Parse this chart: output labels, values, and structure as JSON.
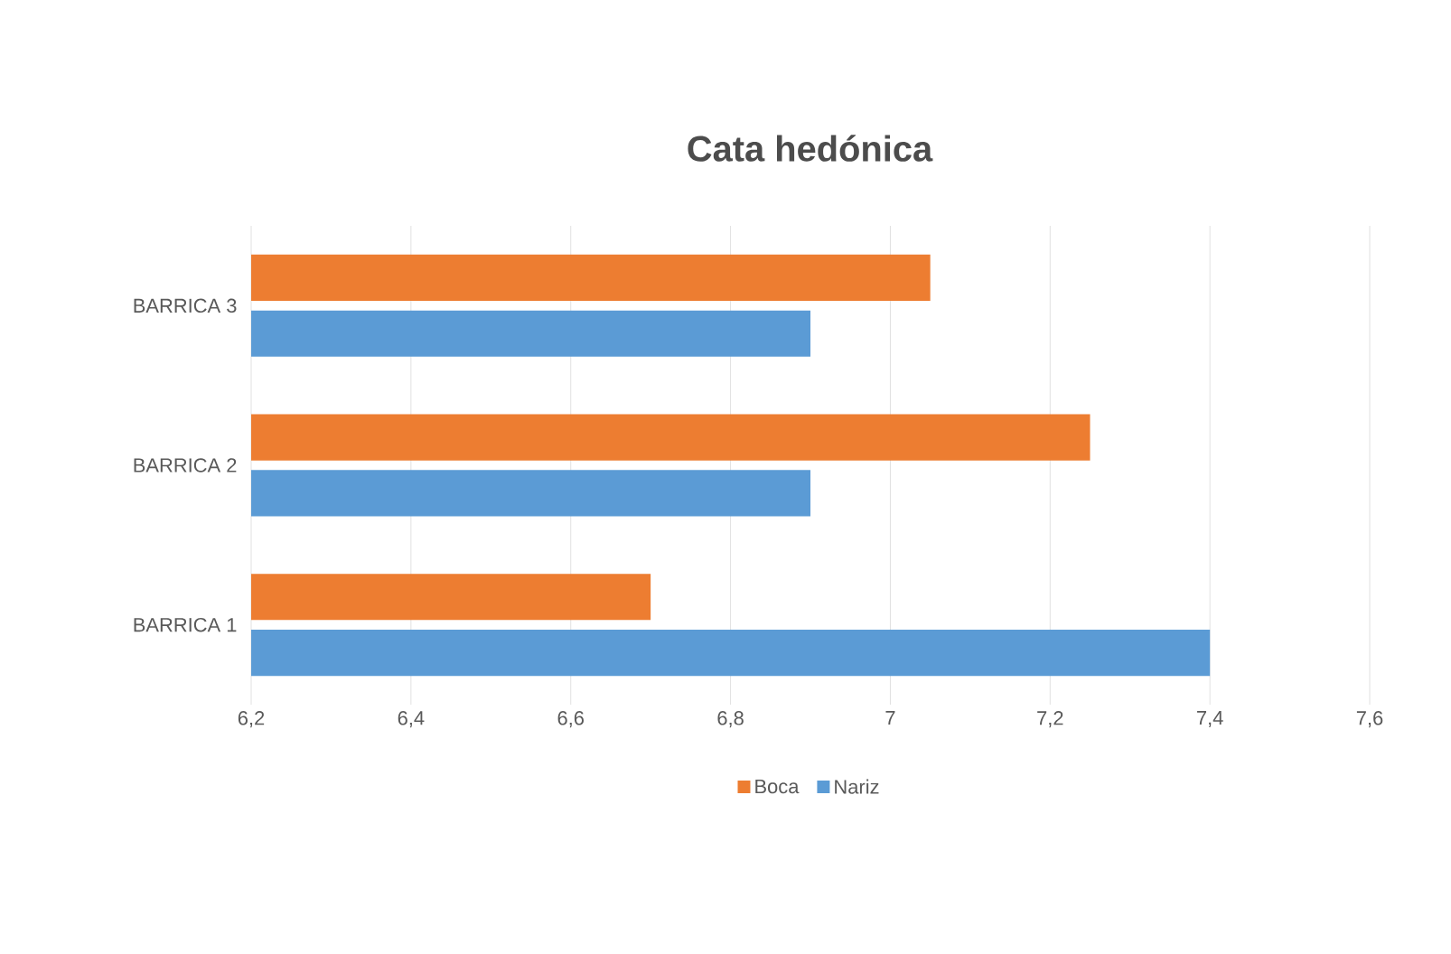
{
  "chart_data": {
    "type": "bar",
    "orientation": "horizontal",
    "title": "Cata hedónica",
    "categories": [
      "BARRICA 3",
      "BARRICA 2",
      "BARRICA 1"
    ],
    "series": [
      {
        "name": "Boca",
        "color": "#ed7d31",
        "values": [
          7.05,
          7.25,
          6.7
        ]
      },
      {
        "name": "Nariz",
        "color": "#5b9bd5",
        "values": [
          6.9,
          6.9,
          7.4
        ]
      }
    ],
    "xlim": [
      6.2,
      7.6
    ],
    "xticks": [
      {
        "value": 6.2,
        "label": "6,2"
      },
      {
        "value": 6.4,
        "label": "6,4"
      },
      {
        "value": 6.6,
        "label": "6,6"
      },
      {
        "value": 6.8,
        "label": "6,8"
      },
      {
        "value": 7,
        "label": "7"
      },
      {
        "value": 7.2,
        "label": "7,2"
      },
      {
        "value": 7.4,
        "label": "7,4"
      },
      {
        "value": 7.6,
        "label": "7,6"
      }
    ],
    "grid": "x",
    "legend": "bottom"
  }
}
